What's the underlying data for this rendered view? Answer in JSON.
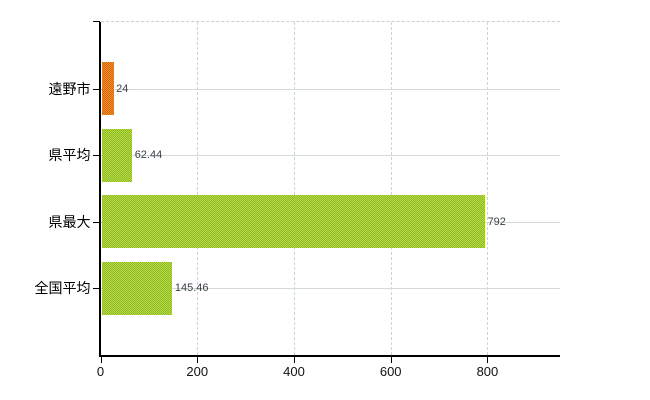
{
  "chart_data": {
    "type": "bar",
    "orientation": "horizontal",
    "title": "",
    "xlabel": "",
    "ylabel": "",
    "categories": [
      "遠野市",
      "県平均",
      "県最大",
      "全国平均"
    ],
    "values": [
      24,
      62.44,
      792,
      145.46
    ],
    "value_labels": [
      "24",
      "62.44",
      "792",
      "145.46"
    ],
    "bar_colors": [
      "#e47b1a",
      "#a2ca35",
      "#a2ca35",
      "#a2ca35"
    ],
    "x_ticks": [
      0,
      200,
      400,
      600,
      800
    ],
    "x_tick_labels": [
      "0",
      "200",
      "400",
      "600",
      "800"
    ],
    "xlim": [
      0,
      950
    ],
    "grid": true,
    "legend": false,
    "colors": {
      "highlight_bar": "#e47b1a",
      "default_bar": "#a2ca35",
      "axis": "#000000",
      "vertical_gridline": "#ccd3d7",
      "horizontal_gridline": "#d2dbd2",
      "top_border": "#cfcccf",
      "value_label": "#3c4048",
      "category_label": "#000000",
      "background": "#ffffff"
    }
  }
}
